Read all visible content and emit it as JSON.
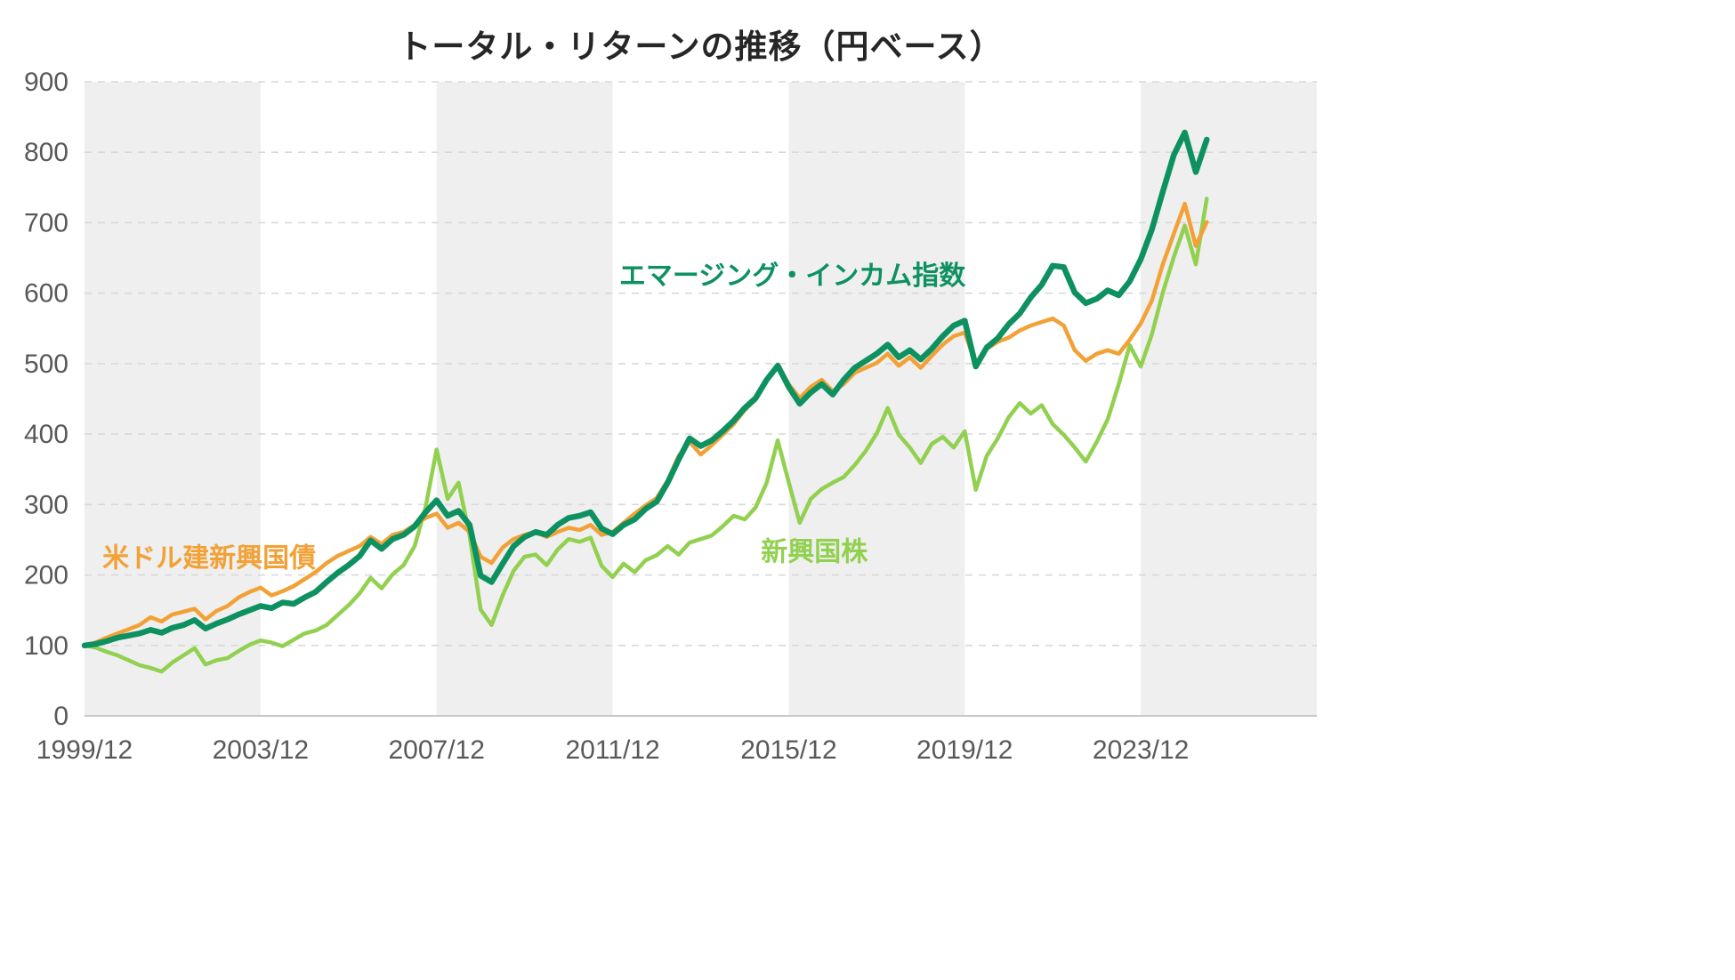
{
  "chart_data": {
    "type": "line",
    "title": "トータル・リターンの推移（円ベース）",
    "x_unit": "months_since_1999_12",
    "x_total_months": 336,
    "x_tick_interval_months": 48,
    "x_tick_labels": [
      "1999/12",
      "2003/12",
      "2007/12",
      "2011/12",
      "2015/12",
      "2019/12",
      "2023/12"
    ],
    "ylim": [
      0,
      900
    ],
    "y_tick_step": 100,
    "y_tick_labels": [
      "0",
      "100",
      "200",
      "300",
      "400",
      "500",
      "600",
      "700",
      "800",
      "900"
    ],
    "grid": "horizontal-dashed",
    "legend_position": "inline-annotations",
    "background_bands": {
      "color": "#efefef",
      "period_months": 48,
      "start_filled": true
    },
    "colors": {
      "grid": "#d9d9d9",
      "axis_line": "#c8c8c8",
      "tick_text": "#595959",
      "title_text": "#262626"
    },
    "sample_step_months": 3,
    "series": [
      {
        "name": "新興国株",
        "color": "#92D050",
        "width": 4.5,
        "values": [
          100,
          97,
          91,
          86,
          79,
          72,
          68,
          63,
          76,
          86,
          96,
          73,
          79,
          82,
          92,
          101,
          107,
          104,
          99,
          108,
          117,
          121,
          129,
          143,
          157,
          174,
          196,
          181,
          201,
          214,
          241,
          296,
          378,
          308,
          331,
          256,
          151,
          129,
          171,
          206,
          226,
          229,
          214,
          236,
          251,
          247,
          253,
          213,
          197,
          216,
          204,
          221,
          228,
          241,
          229,
          246,
          251,
          256,
          269,
          284,
          279,
          296,
          331,
          391,
          332,
          274,
          308,
          322,
          331,
          339,
          356,
          376,
          401,
          437,
          399,
          381,
          359,
          386,
          396,
          381,
          404,
          321,
          369,
          394,
          424,
          444,
          429,
          441,
          414,
          399,
          381,
          361,
          389,
          421,
          471,
          526,
          496,
          541,
          601,
          651,
          696,
          641,
          734
        ]
      },
      {
        "name": "米ドル建新興国債",
        "color": "#F2A136",
        "width": 4.5,
        "values": [
          100,
          104,
          111,
          117,
          123,
          129,
          140,
          134,
          144,
          148,
          152,
          137,
          149,
          156,
          168,
          176,
          182,
          171,
          177,
          184,
          194,
          204,
          217,
          227,
          234,
          241,
          254,
          244,
          257,
          261,
          271,
          281,
          287,
          267,
          274,
          261,
          226,
          217,
          239,
          251,
          257,
          261,
          254,
          261,
          267,
          264,
          271,
          257,
          261,
          274,
          287,
          299,
          309,
          334,
          369,
          389,
          371,
          384,
          399,
          414,
          434,
          449,
          477,
          499,
          471,
          451,
          467,
          477,
          461,
          471,
          487,
          494,
          501,
          514,
          497,
          509,
          494,
          511,
          527,
          539,
          544,
          499,
          521,
          531,
          537,
          547,
          554,
          559,
          564,
          554,
          519,
          504,
          514,
          519,
          514,
          534,
          557,
          589,
          641,
          684,
          727,
          667,
          701
        ]
      },
      {
        "name": "エマージング・インカム指数",
        "color": "#0E9160",
        "width": 6.5,
        "values": [
          100,
          102,
          106,
          111,
          114,
          117,
          122,
          118,
          125,
          129,
          136,
          124,
          131,
          137,
          144,
          150,
          156,
          153,
          161,
          159,
          168,
          176,
          190,
          203,
          214,
          227,
          249,
          237,
          251,
          257,
          269,
          289,
          306,
          284,
          291,
          271,
          199,
          190,
          216,
          241,
          254,
          261,
          257,
          271,
          281,
          284,
          289,
          266,
          258,
          271,
          279,
          294,
          304,
          331,
          364,
          394,
          383,
          391,
          404,
          419,
          437,
          451,
          477,
          497,
          467,
          443,
          459,
          471,
          456,
          477,
          494,
          504,
          514,
          527,
          509,
          519,
          506,
          521,
          539,
          554,
          561,
          496,
          523,
          536,
          556,
          571,
          594,
          612,
          639,
          637,
          601,
          586,
          592,
          604,
          597,
          617,
          648,
          690,
          744,
          796,
          828,
          772,
          818
        ]
      }
    ],
    "annotations": [
      {
        "text": "エマージング・インカム指数",
        "x_month": 193,
        "y_value": 625,
        "color": "#0E9160"
      },
      {
        "text": "米ドル建新興国債",
        "x_month": 34,
        "y_value": 224,
        "color": "#F2A136"
      },
      {
        "text": "新興国株",
        "x_month": 199,
        "y_value": 233,
        "color": "#92D050"
      }
    ]
  }
}
